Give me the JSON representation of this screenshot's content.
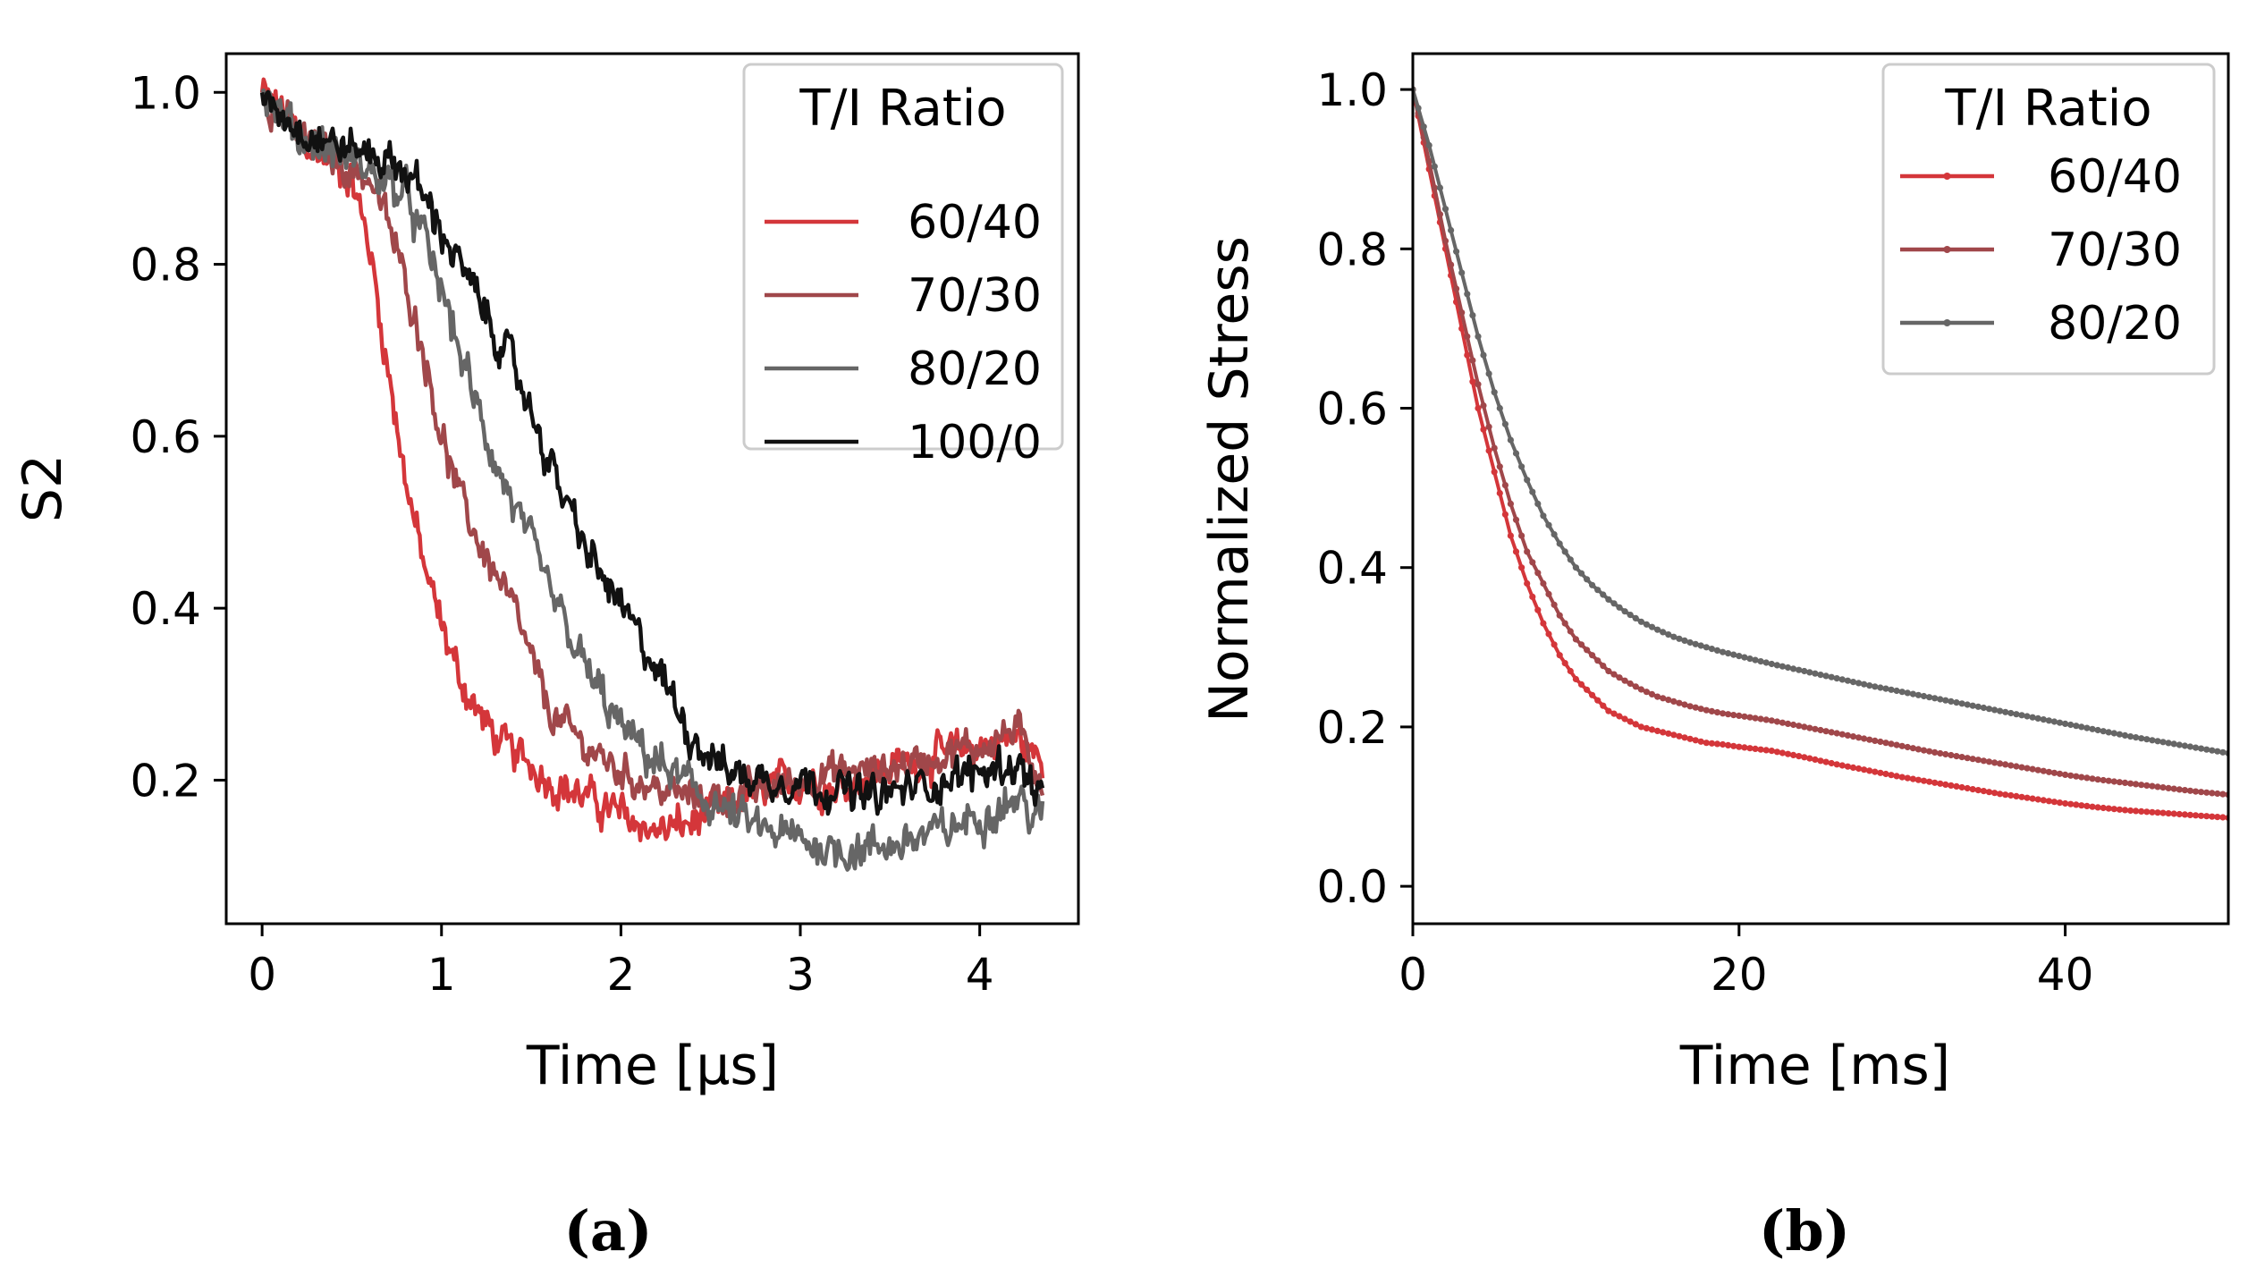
{
  "chart_data": [
    {
      "id": "a",
      "type": "line",
      "caption": "(a)",
      "xlabel": "Time [μs]",
      "ylabel": "S2",
      "xlim": [
        -0.2,
        4.55
      ],
      "ylim": [
        0.033,
        1.045
      ],
      "xticks": [
        0,
        1,
        2,
        3,
        4
      ],
      "xtick_labels": [
        "0",
        "1",
        "2",
        "3",
        "4"
      ],
      "yticks": [
        0.2,
        0.4,
        0.6,
        0.8,
        1.0
      ],
      "ytick_labels": [
        "0.2",
        "0.4",
        "0.6",
        "0.8",
        "1.0"
      ],
      "legend": {
        "title": "T/I Ratio",
        "position": "top-right"
      },
      "series": [
        {
          "name": "60/40",
          "color": "#d4363a",
          "noise": 0.013,
          "x": [
            0,
            0.1,
            0.2,
            0.3,
            0.4,
            0.5,
            0.6,
            0.7,
            0.8,
            0.9,
            1.0,
            1.1,
            1.2,
            1.3,
            1.4,
            1.5,
            1.6,
            1.8,
            2.0,
            2.2,
            2.4,
            2.6,
            2.8,
            3.0,
            3.2,
            3.4,
            3.6,
            3.8,
            4.0,
            4.2,
            4.35
          ],
          "y": [
            1.0,
            0.98,
            0.95,
            0.93,
            0.92,
            0.9,
            0.82,
            0.68,
            0.55,
            0.45,
            0.38,
            0.32,
            0.28,
            0.25,
            0.23,
            0.22,
            0.2,
            0.18,
            0.16,
            0.14,
            0.15,
            0.17,
            0.19,
            0.2,
            0.19,
            0.21,
            0.22,
            0.23,
            0.24,
            0.25,
            0.22
          ]
        },
        {
          "name": "70/30",
          "color": "#a0474a",
          "noise": 0.012,
          "x": [
            0,
            0.2,
            0.4,
            0.6,
            0.7,
            0.8,
            0.9,
            1.0,
            1.1,
            1.2,
            1.3,
            1.4,
            1.5,
            1.6,
            1.8,
            2.0,
            2.2,
            2.4,
            2.6,
            2.8,
            3.0,
            3.2,
            3.4,
            3.6,
            3.8,
            4.0,
            4.2,
            4.35
          ],
          "y": [
            1.0,
            0.95,
            0.92,
            0.9,
            0.85,
            0.78,
            0.7,
            0.6,
            0.53,
            0.48,
            0.44,
            0.4,
            0.34,
            0.28,
            0.24,
            0.21,
            0.19,
            0.18,
            0.18,
            0.19,
            0.2,
            0.21,
            0.21,
            0.22,
            0.23,
            0.24,
            0.26,
            0.2
          ]
        },
        {
          "name": "80/20",
          "color": "#666666",
          "noise": 0.014,
          "x": [
            0,
            0.2,
            0.4,
            0.6,
            0.8,
            0.9,
            1.0,
            1.1,
            1.2,
            1.3,
            1.4,
            1.5,
            1.6,
            1.8,
            2.0,
            2.2,
            2.4,
            2.6,
            2.8,
            3.0,
            3.2,
            3.4,
            3.6,
            3.8,
            4.0,
            4.2,
            4.35
          ],
          "y": [
            1.0,
            0.95,
            0.93,
            0.91,
            0.88,
            0.83,
            0.77,
            0.7,
            0.63,
            0.57,
            0.52,
            0.47,
            0.42,
            0.33,
            0.26,
            0.22,
            0.19,
            0.16,
            0.14,
            0.13,
            0.12,
            0.12,
            0.13,
            0.14,
            0.16,
            0.18,
            0.15
          ]
        },
        {
          "name": "100/0",
          "color": "#111111",
          "noise": 0.013,
          "x": [
            0,
            0.2,
            0.4,
            0.6,
            0.8,
            0.9,
            1.0,
            1.1,
            1.2,
            1.3,
            1.4,
            1.5,
            1.6,
            1.8,
            2.0,
            2.2,
            2.4,
            2.6,
            2.8,
            3.0,
            3.2,
            3.4,
            3.6,
            3.8,
            4.0,
            4.2,
            4.35
          ],
          "y": [
            1.0,
            0.96,
            0.94,
            0.93,
            0.91,
            0.88,
            0.84,
            0.8,
            0.76,
            0.72,
            0.68,
            0.63,
            0.57,
            0.47,
            0.4,
            0.33,
            0.25,
            0.21,
            0.2,
            0.2,
            0.19,
            0.18,
            0.19,
            0.2,
            0.21,
            0.22,
            0.18
          ]
        }
      ]
    },
    {
      "id": "b",
      "type": "line",
      "caption": "(b)",
      "xlabel": "Time [ms]",
      "ylabel": "Normalized Stress",
      "xlim": [
        0,
        50
      ],
      "ylim": [
        -0.047,
        1.045
      ],
      "xticks": [
        0,
        20,
        40
      ],
      "xtick_labels": [
        "0",
        "20",
        "40"
      ],
      "yticks": [
        0.0,
        0.2,
        0.4,
        0.6,
        0.8,
        1.0
      ],
      "ytick_labels": [
        "0.0",
        "0.2",
        "0.4",
        "0.6",
        "0.8",
        "1.0"
      ],
      "legend": {
        "title": "T/I Ratio",
        "position": "top-right"
      },
      "series": [
        {
          "name": "60/40",
          "color": "#d4363a",
          "x": [
            0,
            1,
            2,
            3,
            4,
            5,
            6,
            7,
            8,
            9,
            10,
            11,
            12,
            13,
            14,
            15,
            16,
            17,
            18,
            19,
            20,
            22,
            24,
            26,
            28,
            30,
            32,
            34,
            36,
            38,
            40,
            42,
            44,
            46,
            48,
            50
          ],
          "y": [
            1.0,
            0.9,
            0.8,
            0.7,
            0.6,
            0.52,
            0.44,
            0.38,
            0.33,
            0.29,
            0.26,
            0.24,
            0.22,
            0.21,
            0.2,
            0.195,
            0.19,
            0.185,
            0.18,
            0.178,
            0.175,
            0.17,
            0.162,
            0.153,
            0.145,
            0.137,
            0.13,
            0.123,
            0.116,
            0.11,
            0.104,
            0.099,
            0.095,
            0.092,
            0.089,
            0.086
          ]
        },
        {
          "name": "70/30",
          "color": "#a0474a",
          "x": [
            0,
            1,
            2,
            3,
            4,
            5,
            6,
            7,
            8,
            9,
            10,
            11,
            12,
            13,
            14,
            15,
            16,
            17,
            18,
            19,
            20,
            22,
            24,
            26,
            28,
            30,
            32,
            34,
            36,
            38,
            40,
            42,
            44,
            46,
            48,
            50
          ],
          "y": [
            1.0,
            0.91,
            0.81,
            0.72,
            0.63,
            0.55,
            0.48,
            0.42,
            0.38,
            0.34,
            0.31,
            0.29,
            0.27,
            0.258,
            0.247,
            0.238,
            0.232,
            0.226,
            0.221,
            0.217,
            0.214,
            0.208,
            0.2,
            0.192,
            0.184,
            0.176,
            0.168,
            0.161,
            0.154,
            0.147,
            0.14,
            0.134,
            0.129,
            0.124,
            0.119,
            0.115
          ]
        },
        {
          "name": "80/20",
          "color": "#666666",
          "x": [
            0,
            1,
            2,
            3,
            4,
            5,
            6,
            7,
            8,
            9,
            10,
            11,
            12,
            13,
            14,
            15,
            16,
            17,
            18,
            19,
            20,
            22,
            24,
            26,
            28,
            30,
            32,
            34,
            36,
            38,
            40,
            42,
            44,
            46,
            48,
            50
          ],
          "y": [
            1.0,
            0.93,
            0.85,
            0.77,
            0.69,
            0.62,
            0.56,
            0.51,
            0.465,
            0.43,
            0.4,
            0.378,
            0.36,
            0.345,
            0.332,
            0.322,
            0.313,
            0.306,
            0.3,
            0.294,
            0.289,
            0.279,
            0.27,
            0.261,
            0.252,
            0.244,
            0.236,
            0.228,
            0.22,
            0.212,
            0.204,
            0.196,
            0.188,
            0.181,
            0.174,
            0.167
          ]
        }
      ]
    }
  ]
}
